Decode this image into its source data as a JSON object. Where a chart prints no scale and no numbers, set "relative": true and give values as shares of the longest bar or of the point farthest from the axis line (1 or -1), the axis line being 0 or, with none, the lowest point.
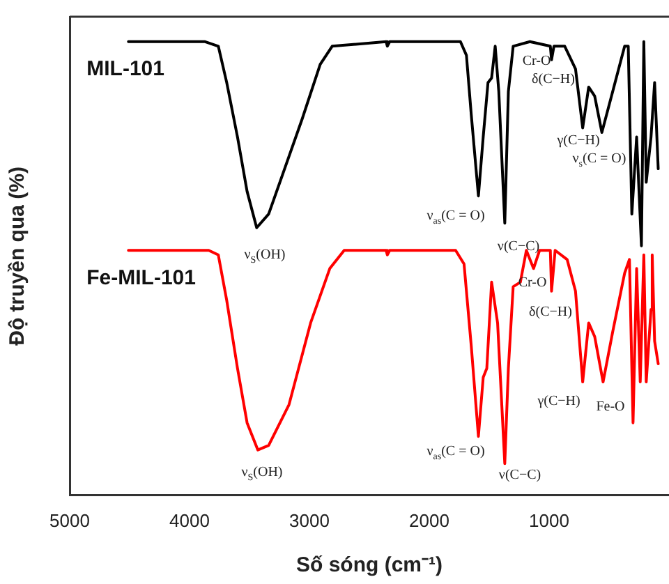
{
  "chart_data": {
    "type": "line",
    "relative": true,
    "xlabel": "Số sóng (cm⁻¹)",
    "ylabel": "Độ truyền qua (%)",
    "xlim": [
      5000,
      0
    ],
    "xticks": [
      5000,
      4000,
      3000,
      2000,
      1000
    ],
    "grid": false,
    "legend": false,
    "marker": "none",
    "line_style": "solid",
    "series": [
      {
        "name": "MIL-101",
        "color": "#000000",
        "x": [
          4510,
          3870,
          3760,
          3690,
          3600,
          3520,
          3440,
          3340,
          3220,
          3060,
          2910,
          2810,
          2360,
          2350,
          2330,
          1740,
          1690,
          1650,
          1590,
          1550,
          1510,
          1480,
          1450,
          1420,
          1370,
          1340,
          1300,
          1160,
          990,
          980,
          960,
          870,
          780,
          720,
          670,
          620,
          560,
          470,
          370,
          340,
          310,
          270,
          230,
          210,
          190,
          150,
          120,
          90
        ],
        "values": [
          1.0,
          1.0,
          0.99,
          0.91,
          0.79,
          0.67,
          0.59,
          0.62,
          0.71,
          0.83,
          0.95,
          0.99,
          1.0,
          0.99,
          1.0,
          1.0,
          0.97,
          0.84,
          0.66,
          0.79,
          0.91,
          0.92,
          0.99,
          0.89,
          0.6,
          0.89,
          0.99,
          1.0,
          0.99,
          0.96,
          0.99,
          0.99,
          0.94,
          0.81,
          0.9,
          0.88,
          0.8,
          0.89,
          0.99,
          0.99,
          0.62,
          0.79,
          0.55,
          1.0,
          0.69,
          0.79,
          0.91,
          0.72
        ]
      },
      {
        "name": "Fe-MIL-101",
        "color": "#ff0000",
        "x": [
          4510,
          3920,
          3840,
          3760,
          3690,
          3600,
          3520,
          3430,
          3340,
          3170,
          2990,
          2830,
          2710,
          2360,
          2350,
          2330,
          1780,
          1710,
          1650,
          1590,
          1550,
          1520,
          1480,
          1430,
          1370,
          1340,
          1300,
          1240,
          1190,
          1130,
          1080,
          990,
          980,
          950,
          850,
          780,
          720,
          670,
          620,
          550,
          470,
          370,
          330,
          300,
          270,
          240,
          210,
          190,
          150,
          140,
          120,
          90
        ],
        "values": [
          0.54,
          0.54,
          0.54,
          0.53,
          0.43,
          0.28,
          0.16,
          0.1,
          0.11,
          0.2,
          0.38,
          0.5,
          0.54,
          0.54,
          0.53,
          0.54,
          0.54,
          0.51,
          0.33,
          0.13,
          0.26,
          0.28,
          0.47,
          0.38,
          0.07,
          0.28,
          0.46,
          0.47,
          0.54,
          0.5,
          0.54,
          0.54,
          0.45,
          0.54,
          0.52,
          0.45,
          0.25,
          0.38,
          0.35,
          0.25,
          0.36,
          0.49,
          0.52,
          0.16,
          0.5,
          0.25,
          0.53,
          0.25,
          0.41,
          0.53,
          0.34,
          0.29
        ]
      }
    ],
    "annotations": [
      "ν$_{S}$(OH)",
      "ν$_{as}$(C = O)",
      "ν(C−C)",
      "Cr-O",
      "δ(C−H)",
      "γ(C−H)",
      "ν$_{s}$(C = O)",
      "ν$_{S}$(OH)",
      "ν$_{as}$(C = O)",
      "ν(C−C)",
      "Cr-O",
      "δ(C−H)",
      "γ(C−H)",
      "Fe-O"
    ]
  }
}
